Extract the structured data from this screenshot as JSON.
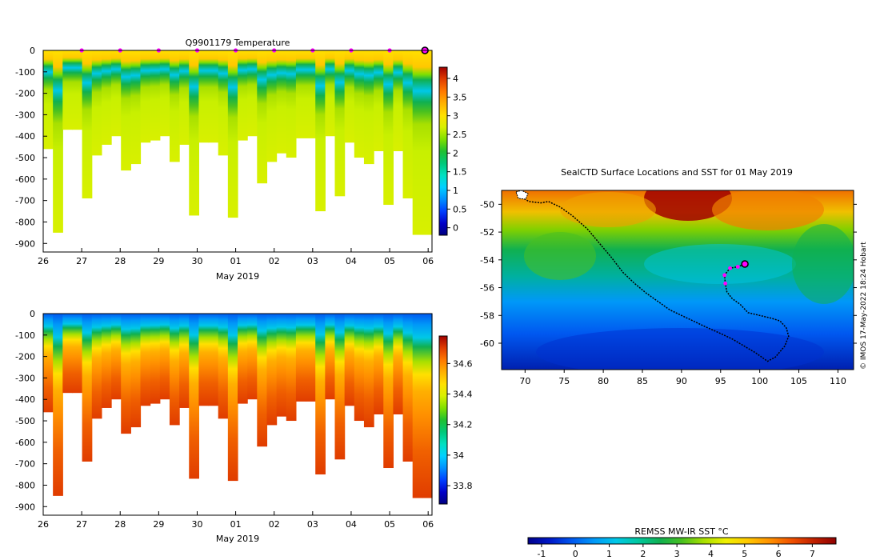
{
  "colors": {
    "jet": [
      "#000080",
      "#0000c8",
      "#0040ff",
      "#0090ff",
      "#00d0ff",
      "#00e0c0",
      "#00c878",
      "#20c030",
      "#80e000",
      "#d8f000",
      "#ffe000",
      "#ffb000",
      "#ff7800",
      "#e03c00",
      "#a00000"
    ],
    "sst": [
      "#00008c",
      "#0018c8",
      "#0058f0",
      "#0098f8",
      "#00c8e8",
      "#00c8a0",
      "#10b050",
      "#48c020",
      "#a8e000",
      "#f0f000",
      "#ffc800",
      "#ff9000",
      "#f05000",
      "#c02000",
      "#900000"
    ],
    "track": "#000000",
    "marker": "#ff00ff"
  },
  "chart_data": [
    {
      "type": "heatmap",
      "name": "temperature-section",
      "title": "Q9901179  Temperature",
      "xlabel": "May 2019",
      "xticks": [
        "26",
        "27",
        "28",
        "29",
        "30",
        "01",
        "02",
        "03",
        "04",
        "05",
        "06"
      ],
      "xlim": [
        0,
        10.1
      ],
      "yticks": [
        "0",
        "-100",
        "-200",
        "-300",
        "-400",
        "-500",
        "-600",
        "-700",
        "-800",
        "-900"
      ],
      "ylim": [
        -940,
        0
      ],
      "colorbar": {
        "ticks": [
          "0",
          "0.5",
          "1",
          "1.5",
          "2",
          "2.5",
          "3",
          "3.5",
          "4"
        ],
        "range": [
          -0.2,
          4.3
        ]
      },
      "profile_depths": [
        460,
        850,
        370,
        370,
        690,
        490,
        440,
        400,
        560,
        530,
        430,
        420,
        400,
        520,
        440,
        770,
        430,
        430,
        490,
        780,
        420,
        400,
        620,
        520,
        480,
        500,
        410,
        410,
        750,
        400,
        680,
        430,
        500,
        530,
        470,
        720,
        470,
        690,
        860,
        860
      ],
      "surface_markers": [
        1,
        2,
        3,
        4,
        5,
        6,
        7,
        8,
        9
      ],
      "latest_marker": 10
    },
    {
      "type": "heatmap",
      "name": "salinity-section",
      "title": "",
      "xlabel": "May 2019",
      "xticks": [
        "26",
        "27",
        "28",
        "29",
        "30",
        "01",
        "02",
        "03",
        "04",
        "05",
        "06"
      ],
      "xlim": [
        0,
        10.1
      ],
      "yticks": [
        "0",
        "-100",
        "-200",
        "-300",
        "-400",
        "-500",
        "-600",
        "-700",
        "-800",
        "-900"
      ],
      "ylim": [
        -940,
        0
      ],
      "colorbar": {
        "ticks": [
          "33.8",
          "34",
          "34.2",
          "34.4",
          "34.6"
        ],
        "range": [
          33.68,
          34.78
        ]
      },
      "profile_depths": [
        460,
        850,
        370,
        370,
        690,
        490,
        440,
        400,
        560,
        530,
        430,
        420,
        400,
        520,
        440,
        770,
        430,
        430,
        490,
        780,
        420,
        400,
        620,
        520,
        480,
        500,
        410,
        410,
        750,
        400,
        680,
        430,
        500,
        530,
        470,
        720,
        470,
        690,
        860,
        860
      ]
    },
    {
      "type": "map",
      "name": "sst-map",
      "title": "SealCTD Surface Locations and SST for 01 May 2019",
      "xticks": [
        "70",
        "75",
        "80",
        "85",
        "90",
        "95",
        "100",
        "105",
        "110"
      ],
      "xlim": [
        67,
        112
      ],
      "yticks": [
        "-50",
        "-52",
        "-54",
        "-56",
        "-58",
        "-60"
      ],
      "ylim": [
        -61.9,
        -49
      ],
      "track": [
        [
          69.6,
          -49.5
        ],
        [
          70.5,
          -49.8
        ],
        [
          72,
          -49.9
        ],
        [
          73,
          -49.8
        ],
        [
          74.5,
          -50.2
        ],
        [
          76,
          -50.8
        ],
        [
          77,
          -51.3
        ],
        [
          78,
          -51.8
        ],
        [
          79.5,
          -52.8
        ],
        [
          81,
          -53.8
        ],
        [
          82.5,
          -54.9
        ],
        [
          84,
          -55.7
        ],
        [
          85.5,
          -56.4
        ],
        [
          87,
          -57.0
        ],
        [
          88.5,
          -57.6
        ],
        [
          90,
          -58.0
        ],
        [
          91.5,
          -58.4
        ],
        [
          93,
          -58.8
        ],
        [
          95,
          -59.3
        ],
        [
          96.5,
          -59.7
        ],
        [
          98,
          -60.2
        ],
        [
          99.5,
          -60.7
        ],
        [
          101,
          -61.3
        ],
        [
          102,
          -61.0
        ],
        [
          103.2,
          -60.2
        ],
        [
          103.7,
          -59.5
        ],
        [
          103.4,
          -58.9
        ],
        [
          102.6,
          -58.4
        ],
        [
          101.5,
          -58.2
        ],
        [
          100,
          -58.0
        ],
        [
          98.5,
          -57.8
        ],
        [
          97.5,
          -57.2
        ],
        [
          96.5,
          -56.8
        ],
        [
          95.8,
          -56.3
        ],
        [
          95.6,
          -55.7
        ],
        [
          95.5,
          -55.1
        ],
        [
          96.2,
          -54.6
        ],
        [
          97.2,
          -54.5
        ],
        [
          98.1,
          -54.3
        ]
      ],
      "recent_markers": [
        [
          95.6,
          -55.7
        ],
        [
          95.5,
          -55.1
        ],
        [
          96.2,
          -54.6
        ],
        [
          97.2,
          -54.5
        ]
      ],
      "latest_position": [
        98.1,
        -54.3
      ],
      "colorbar": {
        "label": "REMSS MW-IR SST °C",
        "ticks": [
          "-1",
          "0",
          "1",
          "2",
          "3",
          "4",
          "5",
          "6",
          "7"
        ],
        "range": [
          -1.4,
          7.7
        ]
      },
      "credit": "© IMOS 17-May-2022 18:24 Hobart"
    }
  ]
}
